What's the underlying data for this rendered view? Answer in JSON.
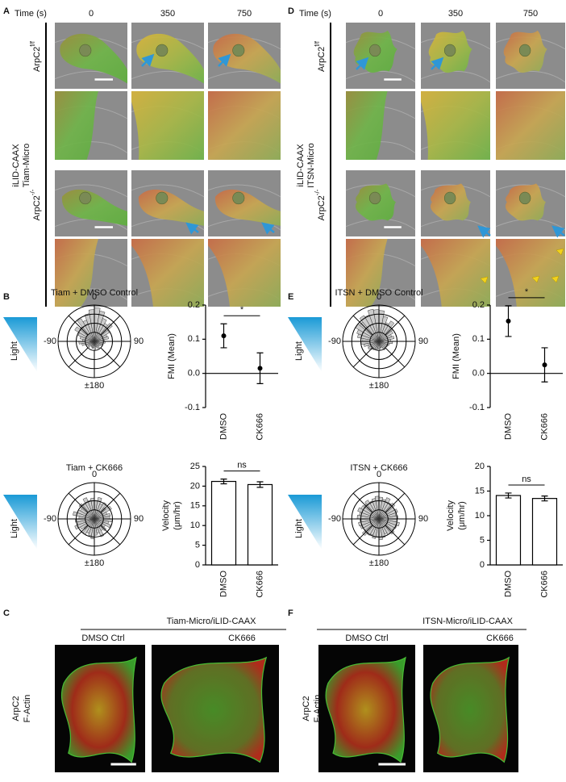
{
  "panels": {
    "A": {
      "label": "A",
      "time_label": "Time (s)",
      "times": [
        "0",
        "350",
        "750"
      ],
      "probe": [
        "iLID-CAAX",
        "Tiam-Micro"
      ],
      "rows": [
        {
          "base": "ArpC2",
          "sup": "f/f"
        },
        {
          "base": "ArpC2",
          "sup": "-/-"
        }
      ]
    },
    "B": {
      "label": "B"
    },
    "C": {
      "label": "C",
      "header": "Tiam-Micro/iLID-CAAX",
      "conditions": [
        "DMSO Ctrl",
        "CK666"
      ],
      "stain": [
        "ArpC2",
        "F-Actin"
      ]
    },
    "D": {
      "label": "D",
      "time_label": "Time (s)",
      "times": [
        "0",
        "350",
        "750"
      ],
      "probe": [
        "iLID-CAAX",
        "ITSN-Micro"
      ],
      "rows": [
        {
          "base": "ArpC2",
          "sup": "f/f"
        },
        {
          "base": "ArpC2",
          "sup": "-/-"
        }
      ]
    },
    "E": {
      "label": "E"
    },
    "F": {
      "label": "F",
      "header": "ITSN-Micro/iLID-CAAX",
      "conditions": [
        "DMSO Ctrl",
        "CK666"
      ],
      "stain": [
        "ArpC2",
        "F-Actin"
      ]
    }
  },
  "chart_data": [
    {
      "type": "rose",
      "title": "Tiam + DMSO Control",
      "annotation": "Light",
      "rlim": [
        0,
        4
      ],
      "rticks": [
        1,
        2,
        3,
        4
      ],
      "theta_ticks": [
        {
          "value": 0,
          "label": "0"
        },
        {
          "value": 90,
          "label": "90"
        },
        {
          "value": 180,
          "label": "±180"
        },
        {
          "value": -90,
          "label": "-90"
        }
      ],
      "values": [
        3.7,
        3.4,
        2.7,
        2.3,
        2.6,
        1.9,
        1.5,
        1.6,
        1.1,
        1.2,
        0.9,
        1.0,
        0.8,
        0.7,
        0.9,
        0.8,
        0.6,
        0.9,
        0.7,
        0.8,
        0.7,
        0.6,
        0.9,
        0.8,
        1.0,
        1.4,
        1.7,
        1.3,
        1.6,
        1.9,
        2.5,
        2.1,
        2.9,
        2.5,
        3.1,
        3.5
      ],
      "color": "#cccccc"
    },
    {
      "type": "dot",
      "ylabel": [
        "FMI (Mean)"
      ],
      "categories": [
        "DMSO",
        "CK666"
      ],
      "values": [
        0.11,
        0.015
      ],
      "errors": [
        0.035,
        0.045
      ],
      "ylim": [
        -0.1,
        0.2
      ],
      "yticks": [
        0.2,
        0.1,
        {
          "value": 0,
          "label": "0.0"
        },
        -0.1
      ],
      "significance": "*",
      "color": "#000000"
    },
    {
      "type": "rose",
      "title": "Tiam + CK666",
      "annotation": "Light",
      "rlim": [
        0,
        4
      ],
      "rticks": [
        1,
        2,
        3,
        4
      ],
      "theta_ticks": [
        {
          "value": 0,
          "label": "0"
        },
        {
          "value": 90,
          "label": "90"
        },
        {
          "value": 180,
          "label": "±180"
        },
        {
          "value": -90,
          "label": "-90"
        }
      ],
      "values": [
        2.0,
        2.4,
        1.8,
        2.1,
        1.6,
        2.2,
        1.5,
        1.8,
        1.7,
        2.0,
        1.6,
        1.9,
        1.4,
        1.7,
        1.5,
        2.1,
        1.6,
        1.8,
        2.2,
        1.9,
        1.7,
        2.0,
        1.5,
        1.8,
        2.3,
        1.9,
        2.1,
        1.7,
        2.4,
        2.0,
        1.8,
        2.2,
        1.9,
        2.5,
        2.1,
        2.3
      ],
      "color": "#cccccc"
    },
    {
      "type": "bar",
      "ylabel": [
        "Velocity",
        "(μm/hr)"
      ],
      "categories": [
        "DMSO",
        "CK666"
      ],
      "values": [
        21.2,
        20.4
      ],
      "errors": [
        0.6,
        0.7
      ],
      "ylim": [
        0,
        25
      ],
      "yticks": [
        0,
        5,
        10,
        15,
        20,
        25
      ],
      "significance": "ns",
      "color": "#ffffff"
    },
    {
      "type": "rose",
      "title": "ITSN + DMSO Control",
      "annotation": "Light",
      "rlim": [
        0,
        4
      ],
      "rticks": [
        1,
        2,
        3,
        4
      ],
      "theta_ticks": [
        {
          "value": 0,
          "label": "0"
        },
        {
          "value": 90,
          "label": "90"
        },
        {
          "value": 180,
          "label": "±180"
        },
        {
          "value": -90,
          "label": "-90"
        }
      ],
      "values": [
        3.4,
        2.8,
        2.2,
        2.6,
        2.0,
        1.8,
        1.5,
        1.7,
        1.3,
        1.5,
        1.2,
        1.1,
        1.0,
        0.9,
        1.1,
        0.8,
        0.7,
        0.9,
        0.8,
        1.0,
        0.9,
        1.1,
        1.2,
        1.4,
        1.3,
        1.7,
        2.0,
        1.8,
        2.4,
        2.6,
        3.0,
        2.8,
        3.3,
        3.1,
        3.6,
        3.5
      ],
      "color": "#cccccc"
    },
    {
      "type": "dot",
      "ylabel": [
        "FMI (Mean)"
      ],
      "categories": [
        "DMSO",
        "CK666"
      ],
      "values": [
        0.153,
        0.025
      ],
      "errors": [
        0.045,
        0.05
      ],
      "ylim": [
        -0.1,
        0.2
      ],
      "yticks": [
        0.2,
        0.1,
        {
          "value": 0,
          "label": "0.0"
        },
        -0.1
      ],
      "significance": "*",
      "color": "#000000"
    },
    {
      "type": "rose",
      "title": "ITSN + CK666",
      "annotation": "Light",
      "rlim": [
        0,
        4
      ],
      "rticks": [
        1,
        2,
        3,
        4
      ],
      "theta_ticks": [
        {
          "value": 0,
          "label": "0"
        },
        {
          "value": 90,
          "label": "90"
        },
        {
          "value": 180,
          "label": "±180"
        },
        {
          "value": -90,
          "label": "-90"
        }
      ],
      "values": [
        2.4,
        2.2,
        2.5,
        2.1,
        2.3,
        2.0,
        2.2,
        1.9,
        2.1,
        2.0,
        2.3,
        2.1,
        1.9,
        2.2,
        2.0,
        1.8,
        2.1,
        2.3,
        2.0,
        2.2,
        1.9,
        2.1,
        2.4,
        2.0,
        2.2,
        2.3,
        2.1,
        2.4,
        2.2,
        2.5,
        2.3,
        2.2,
        2.4,
        2.1,
        2.3,
        2.5
      ],
      "color": "#cccccc"
    },
    {
      "type": "bar",
      "ylabel": [
        "Velocity",
        "(μm/hr)"
      ],
      "categories": [
        "DMSO",
        "CK666"
      ],
      "values": [
        14.1,
        13.5
      ],
      "errors": [
        0.5,
        0.5
      ],
      "ylim": [
        0,
        20
      ],
      "yticks": [
        0,
        5,
        10,
        15,
        20
      ],
      "significance": "ns",
      "color": "#ffffff"
    }
  ]
}
